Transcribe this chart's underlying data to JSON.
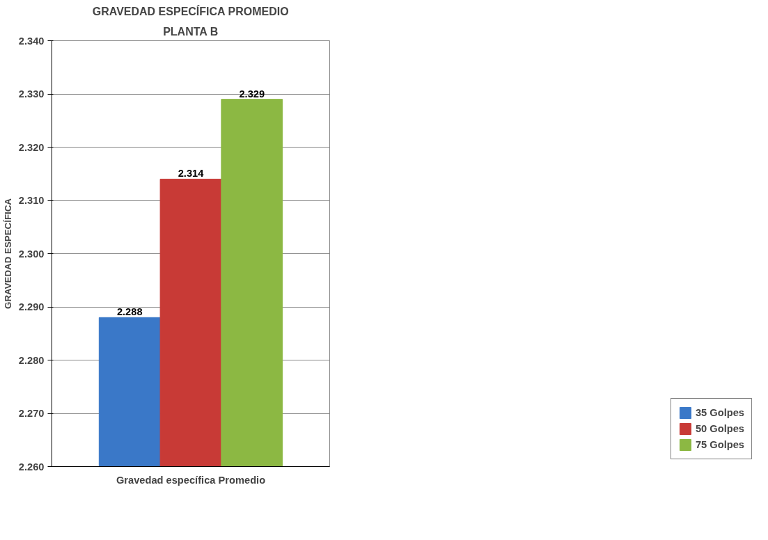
{
  "chart_data": {
    "type": "bar",
    "title": "GRAVEDAD ESPECÍFICA PROMEDIO",
    "subtitle": "PLANTA B",
    "ylabel": "GRAVEDAD ESPECÍFICA",
    "categories": [
      "Gravedad específica Promedio"
    ],
    "series": [
      {
        "name": "35 Golpes",
        "color": "#3a78c8",
        "values": [
          2.288
        ]
      },
      {
        "name": "50 Golpes",
        "color": "#c83a36",
        "values": [
          2.314
        ]
      },
      {
        "name": "75 Golpes",
        "color": "#8cb843",
        "values": [
          2.329
        ]
      }
    ],
    "ylim": [
      2.26,
      2.34
    ],
    "yticks": [
      {
        "value": 2.26,
        "label": "2.260"
      },
      {
        "value": 2.27,
        "label": "2.270"
      },
      {
        "value": 2.28,
        "label": "2.280"
      },
      {
        "value": 2.29,
        "label": "2.290"
      },
      {
        "value": 2.3,
        "label": "2.300"
      },
      {
        "value": 2.31,
        "label": "2.310"
      },
      {
        "value": 2.32,
        "label": "2.320"
      },
      {
        "value": 2.33,
        "label": "2.330"
      },
      {
        "value": 2.34,
        "label": "2.340"
      }
    ],
    "grid": "y",
    "legend": "bottom right",
    "data_labels": true
  }
}
